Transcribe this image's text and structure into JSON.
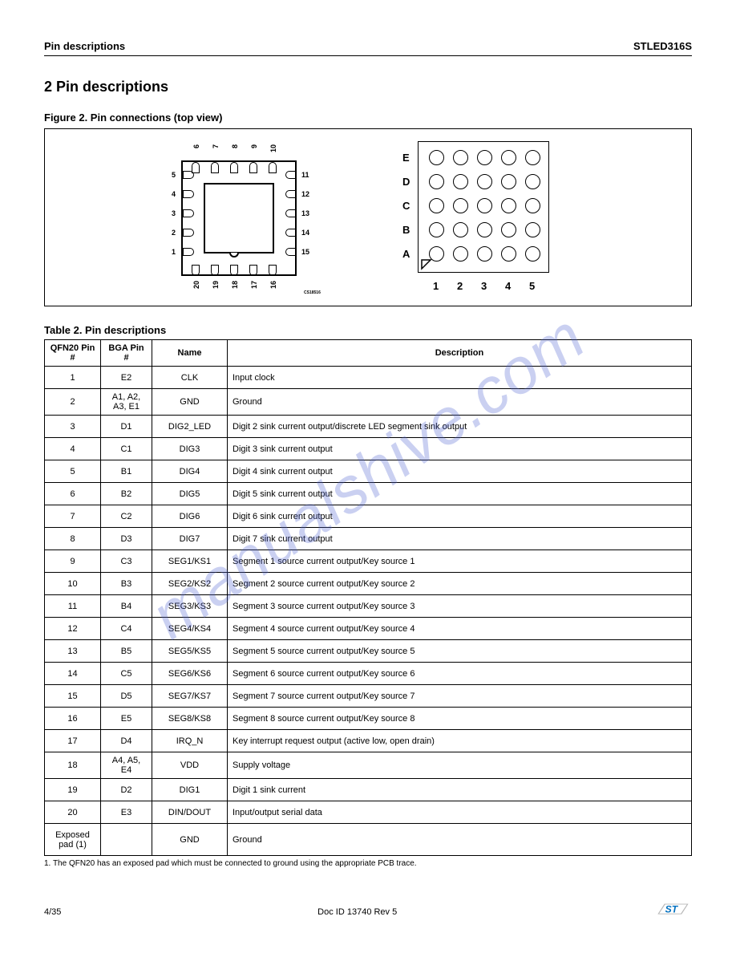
{
  "header": {
    "left": "Pin descriptions",
    "right": "STLED316S"
  },
  "section_title": "2   Pin descriptions",
  "figure_caption": "Figure 2.    Pin connections (top view)",
  "table_caption": "Table 2.   Pin descriptions",
  "qfn": {
    "pin_numbers_left": [
      "5",
      "4",
      "3",
      "2",
      "1"
    ],
    "pin_numbers_right": [
      "11",
      "12",
      "13",
      "14",
      "15"
    ],
    "pin_numbers_top": [
      "6",
      "7",
      "8",
      "9",
      "10"
    ],
    "pin_numbers_bottom": [
      "20",
      "19",
      "18",
      "17",
      "16"
    ],
    "small_text": "CS18516"
  },
  "bga": {
    "row_labels": [
      "E",
      "D",
      "C",
      "B",
      "A"
    ],
    "col_labels": [
      "1",
      "2",
      "3",
      "4",
      "5"
    ]
  },
  "table": {
    "headers": [
      "QFN20 Pin #",
      "BGA Pin #",
      "Name",
      "Description"
    ],
    "rows": [
      [
        "1",
        "E2",
        "CLK",
        "Input clock"
      ],
      [
        "2",
        "A1, A2, A3, E1",
        "GND",
        "Ground"
      ],
      [
        "3",
        "D1",
        "DIG2_LED",
        "Digit 2 sink current output/discrete LED segment sink output"
      ],
      [
        "4",
        "C1",
        "DIG3",
        "Digit 3 sink current output"
      ],
      [
        "5",
        "B1",
        "DIG4",
        "Digit 4 sink current output"
      ],
      [
        "6",
        "B2",
        "DIG5",
        "Digit 5 sink current output"
      ],
      [
        "7",
        "C2",
        "DIG6",
        "Digit 6 sink current output"
      ],
      [
        "8",
        "D3",
        "DIG7",
        "Digit 7 sink current output"
      ],
      [
        "9",
        "C3",
        "SEG1/KS1",
        "Segment 1 source current output/Key source 1"
      ],
      [
        "10",
        "B3",
        "SEG2/KS2",
        "Segment 2 source current output/Key source 2"
      ],
      [
        "11",
        "B4",
        "SEG3/KS3",
        "Segment 3 source current output/Key source 3"
      ],
      [
        "12",
        "C4",
        "SEG4/KS4",
        "Segment 4 source current output/Key source 4"
      ],
      [
        "13",
        "B5",
        "SEG5/KS5",
        "Segment 5 source current output/Key source 5"
      ],
      [
        "14",
        "C5",
        "SEG6/KS6",
        "Segment 6 source current output/Key source 6"
      ],
      [
        "15",
        "D5",
        "SEG7/KS7",
        "Segment 7 source current output/Key source 7"
      ],
      [
        "16",
        "E5",
        "SEG8/KS8",
        "Segment 8 source current output/Key source 8"
      ],
      [
        "17",
        "D4",
        "IRQ_N",
        "Key interrupt request output (active low, open drain)"
      ],
      [
        "18",
        "A4, A5, E4",
        "VDD",
        "Supply voltage"
      ],
      [
        "19",
        "D2",
        "DIG1",
        "Digit 1 sink current"
      ],
      [
        "20",
        "E3",
        "DIN/DOUT",
        "Input/output serial data"
      ]
    ],
    "footnote_row": [
      "Exposed pad (1)",
      "",
      "GND",
      "Ground"
    ]
  },
  "footnote": "1. The QFN20 has an exposed pad which must be connected to ground using the appropriate PCB trace.",
  "footer": {
    "page": "4/35",
    "docid": "Doc ID 13740 Rev 5"
  },
  "watermark": "manualshive.com",
  "colors": {
    "watermark": "rgba(80,100,210,0.30)",
    "text": "#000000",
    "logo_blue": "#0070c0",
    "logo_grey": "#b8b8b8"
  }
}
